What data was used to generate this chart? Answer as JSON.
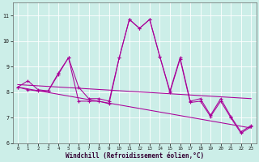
{
  "background_color": "#cceee8",
  "line_color": "#aa0099",
  "x_label": "Windchill (Refroidissement éolien,°C)",
  "ylim": [
    6,
    11.5
  ],
  "xlim": [
    -0.5,
    23.5
  ],
  "yticks": [
    6,
    7,
    8,
    9,
    10,
    11
  ],
  "xticks": [
    0,
    1,
    2,
    3,
    4,
    5,
    6,
    7,
    8,
    9,
    10,
    11,
    12,
    13,
    14,
    15,
    16,
    17,
    18,
    19,
    20,
    21,
    22,
    23
  ],
  "series1_x": [
    0,
    1,
    2,
    3,
    4,
    5,
    6,
    7,
    8,
    9,
    10,
    11,
    12,
    13,
    14,
    15,
    16,
    17,
    18,
    19,
    20,
    21,
    22,
    23
  ],
  "series1_y": [
    8.2,
    8.45,
    8.1,
    8.05,
    8.75,
    9.35,
    8.2,
    7.75,
    7.75,
    7.65,
    9.35,
    10.85,
    10.5,
    10.85,
    9.4,
    8.05,
    9.35,
    7.65,
    7.75,
    7.1,
    7.75,
    7.05,
    6.45,
    6.7
  ],
  "series2_x": [
    0,
    1,
    2,
    3,
    4,
    5,
    6,
    7,
    8,
    9,
    10,
    11,
    12,
    13,
    14,
    15,
    16,
    17,
    18,
    19,
    20,
    21,
    22,
    23
  ],
  "series2_y": [
    8.2,
    8.1,
    8.05,
    8.05,
    8.7,
    9.35,
    7.65,
    7.65,
    7.65,
    7.55,
    9.35,
    10.85,
    10.5,
    10.85,
    9.4,
    8.0,
    9.3,
    7.6,
    7.65,
    7.05,
    7.65,
    7.0,
    6.4,
    6.65
  ],
  "trend1_x": [
    0,
    23
  ],
  "trend1_y": [
    8.3,
    7.75
  ],
  "trend2_x": [
    0,
    23
  ],
  "trend2_y": [
    8.2,
    6.6
  ]
}
